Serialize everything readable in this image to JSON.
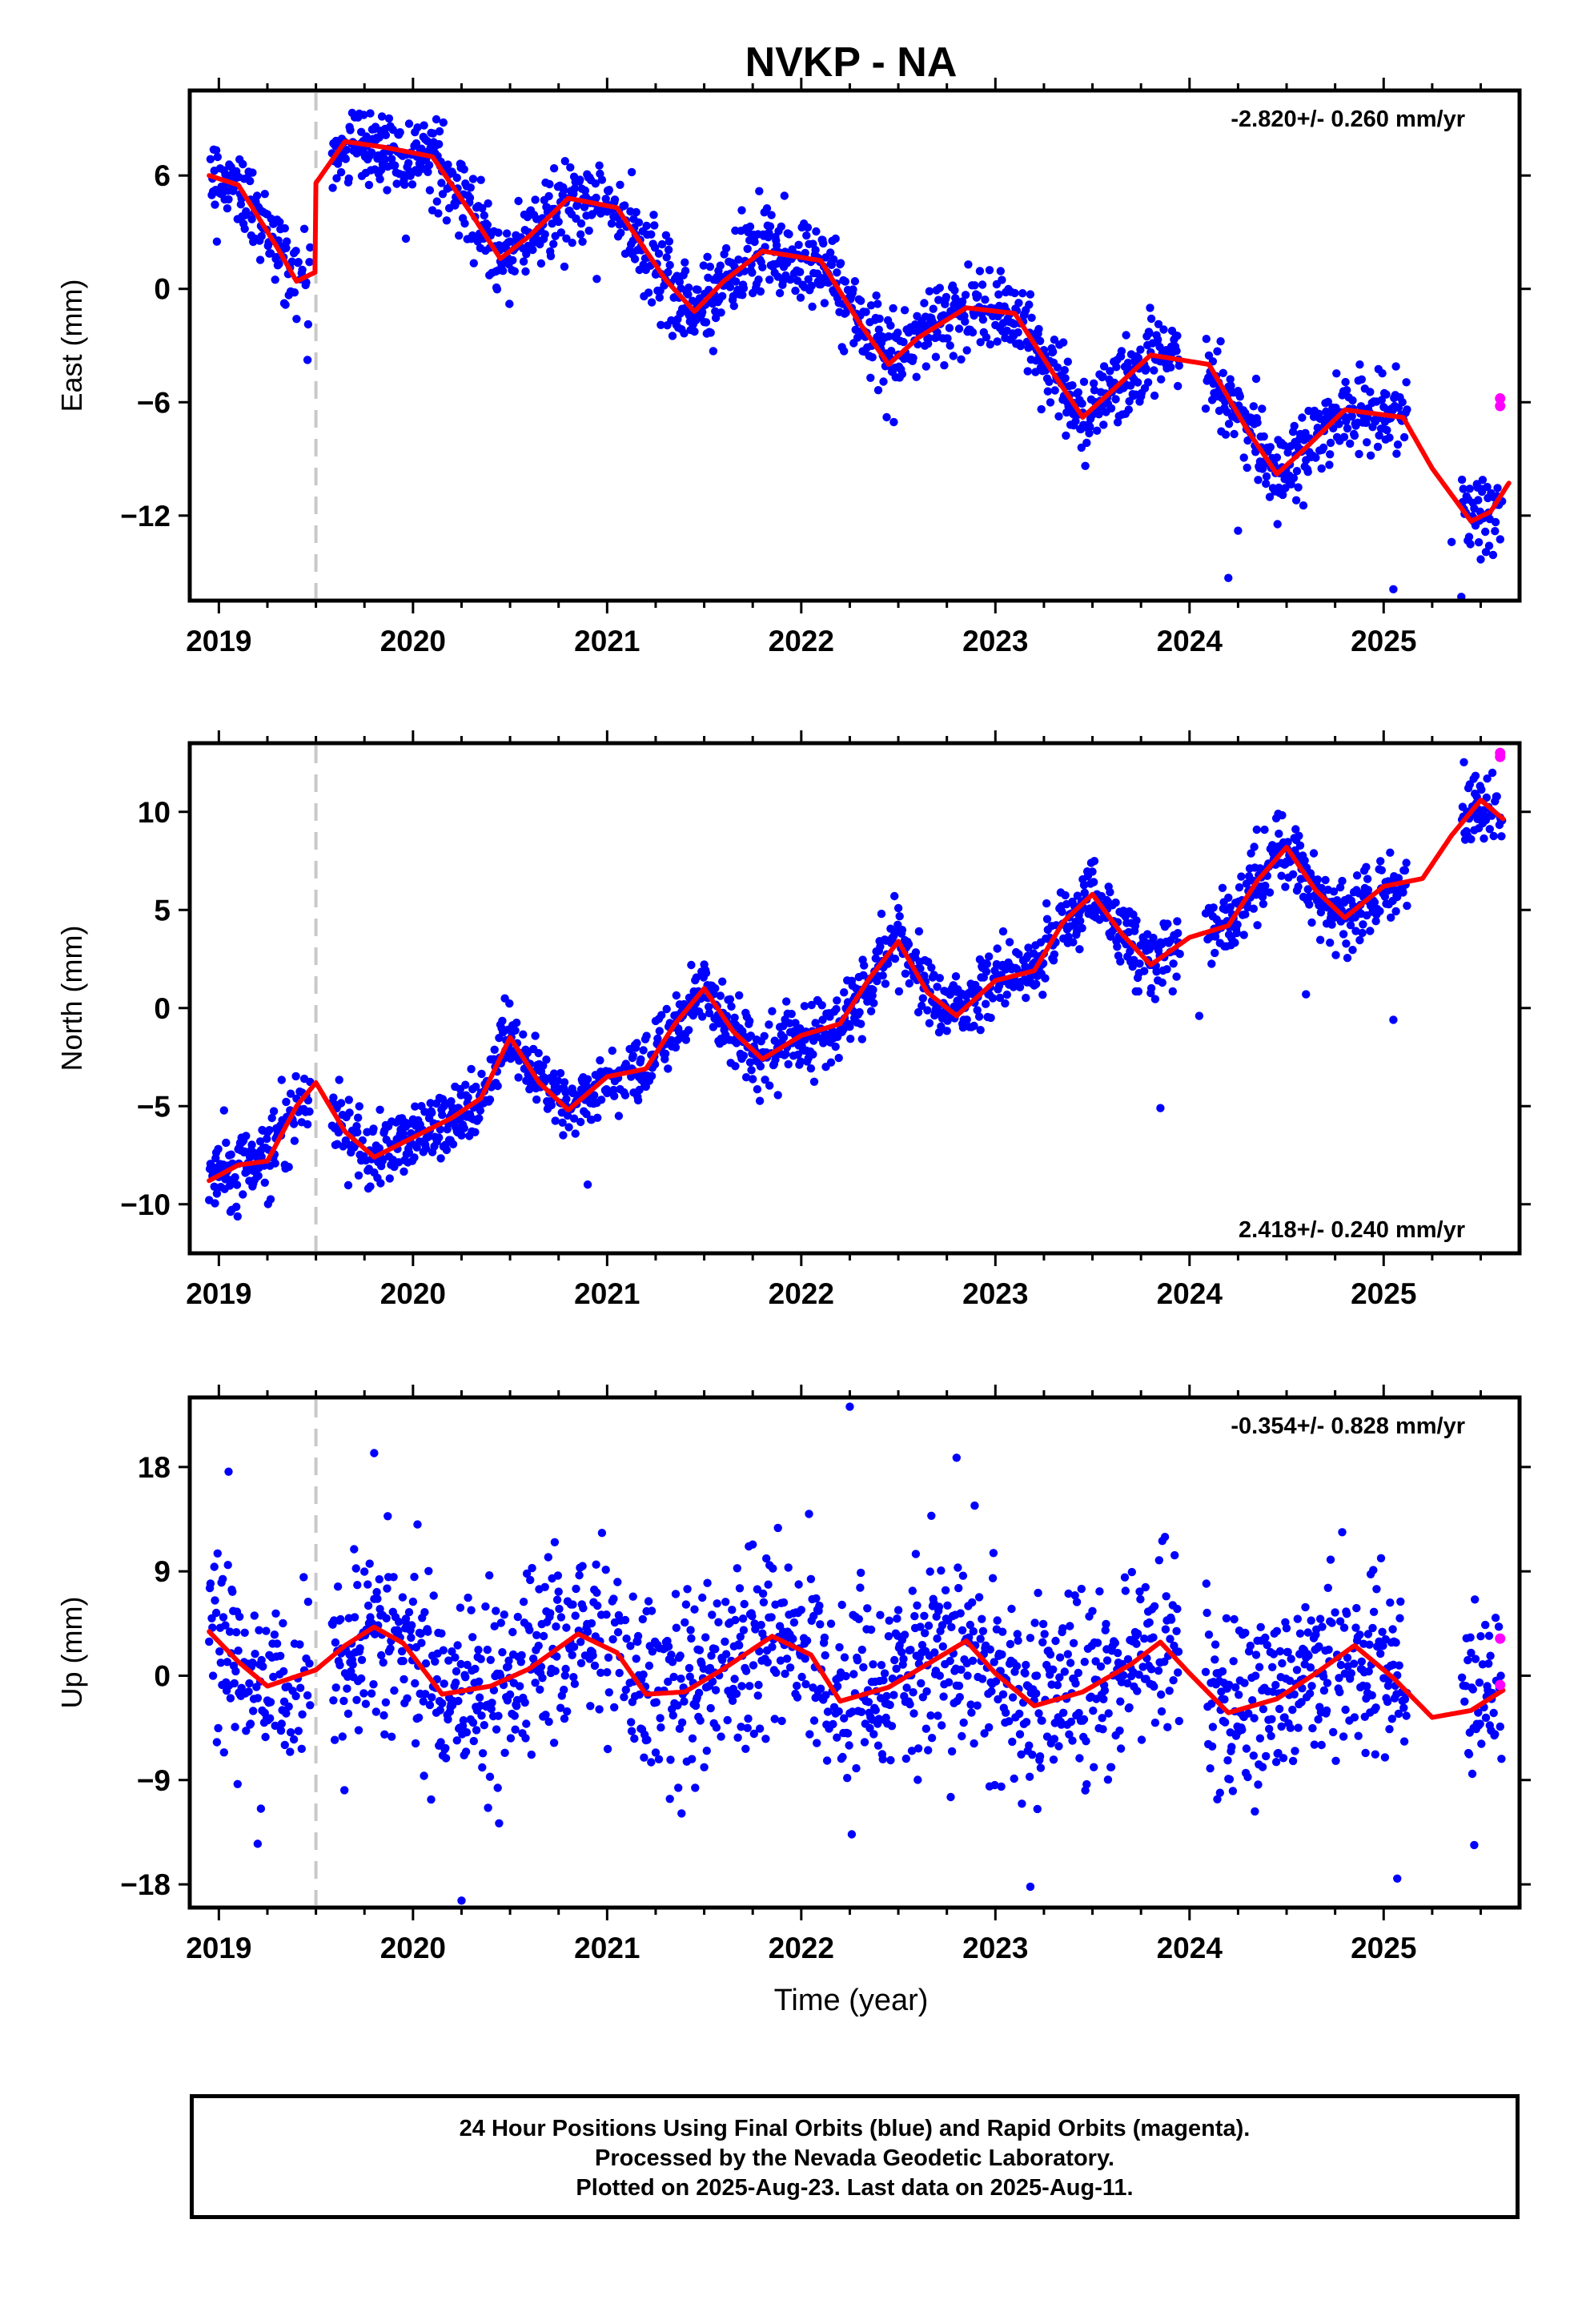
{
  "title": "NVKP - NA",
  "xlabel": "Time (year)",
  "footer": {
    "line1": "24 Hour Positions Using Final Orbits (blue) and Rapid Orbits (magenta).",
    "line2": "Processed by the Nevada Geodetic Laboratory.",
    "line3": "Plotted on 2025-Aug-23. Last data on 2025-Aug-11."
  },
  "colors": {
    "final": "#0000ff",
    "rapid": "#ff00ff",
    "model": "#ff0000",
    "equipment_change": "#c8c8c8",
    "frame": "#000000"
  },
  "chart_data": [
    {
      "type": "scatter",
      "name": "east",
      "ylabel": "East (mm)",
      "rate": "-2.820+/- 0.260 mm/yr",
      "rate_position": "top-right",
      "xlim": [
        2018.85,
        2025.7
      ],
      "ylim": [
        -16.5,
        10.5
      ],
      "xticks": [
        2019,
        2020,
        2021,
        2022,
        2023,
        2024,
        2025
      ],
      "yticks": [
        6,
        0,
        -6,
        -12
      ],
      "ytick_labels": [
        "6",
        "0",
        "−6",
        "−12"
      ],
      "equipment_change": 2019.5,
      "trend": {
        "t0": 2018.95,
        "offset": 5.9,
        "rate": -2.82,
        "amp": 1.9,
        "step": 7.0,
        "noise": 1.1
      },
      "rapid": [
        [
          2025.6,
          -5.8
        ],
        [
          2025.6,
          -6.2
        ]
      ],
      "outliers": [
        [
          2024.2,
          -15.3
        ],
        [
          2025.05,
          -15.9
        ],
        [
          2025.4,
          -16.3
        ],
        [
          2025.35,
          -13.4
        ],
        [
          2024.25,
          -12.8
        ]
      ],
      "model_knots": [
        [
          2018.95,
          6.0
        ],
        [
          2019.1,
          5.5
        ],
        [
          2019.3,
          2.2
        ],
        [
          2019.4,
          0.4
        ],
        [
          2019.5,
          0.9
        ],
        [
          2019.5,
          5.6
        ],
        [
          2019.65,
          7.8
        ],
        [
          2019.85,
          7.5
        ],
        [
          2020.1,
          7.0
        ],
        [
          2020.3,
          4.0
        ],
        [
          2020.45,
          1.6
        ],
        [
          2020.6,
          2.8
        ],
        [
          2020.8,
          4.8
        ],
        [
          2021.05,
          4.3
        ],
        [
          2021.3,
          0.5
        ],
        [
          2021.45,
          -1.2
        ],
        [
          2021.6,
          0.4
        ],
        [
          2021.8,
          2.0
        ],
        [
          2022.1,
          1.5
        ],
        [
          2022.3,
          -1.8
        ],
        [
          2022.45,
          -4.0
        ],
        [
          2022.6,
          -2.6
        ],
        [
          2022.85,
          -1.0
        ],
        [
          2023.1,
          -1.3
        ],
        [
          2023.3,
          -4.5
        ],
        [
          2023.45,
          -6.8
        ],
        [
          2023.6,
          -5.4
        ],
        [
          2023.8,
          -3.5
        ],
        [
          2024.1,
          -4.0
        ],
        [
          2024.3,
          -7.5
        ],
        [
          2024.45,
          -9.8
        ],
        [
          2024.6,
          -8.4
        ],
        [
          2024.8,
          -6.4
        ],
        [
          2025.1,
          -6.8
        ],
        [
          2025.25,
          -9.5
        ],
        [
          2025.45,
          -12.3
        ],
        [
          2025.55,
          -11.8
        ],
        [
          2025.65,
          -10.2
        ]
      ]
    },
    {
      "type": "scatter",
      "name": "north",
      "ylabel": "North (mm)",
      "rate": "2.418+/- 0.240 mm/yr",
      "rate_position": "bottom-right",
      "xlim": [
        2018.85,
        2025.7
      ],
      "ylim": [
        -12.5,
        13.5
      ],
      "xticks": [
        2019,
        2020,
        2021,
        2022,
        2023,
        2024,
        2025
      ],
      "yticks": [
        10,
        5,
        0,
        -5,
        -10
      ],
      "ytick_labels": [
        "10",
        "5",
        "0",
        "−5",
        "−10"
      ],
      "equipment_change": 2019.5,
      "trend": {
        "t0": 2018.95,
        "offset": -8.5,
        "rate": 2.418,
        "amp": 2.0,
        "step": 0,
        "noise": 0.9
      },
      "rapid": [
        [
          2025.6,
          13.0
        ],
        [
          2025.6,
          12.8
        ]
      ],
      "outliers": [
        [
          2023.85,
          -5.1
        ],
        [
          2024.6,
          0.7
        ],
        [
          2025.05,
          -0.6
        ],
        [
          2020.9,
          -9.0
        ],
        [
          2024.05,
          -0.4
        ]
      ],
      "model_knots": [
        [
          2018.95,
          -8.8
        ],
        [
          2019.1,
          -8.0
        ],
        [
          2019.25,
          -7.8
        ],
        [
          2019.4,
          -5.0
        ],
        [
          2019.5,
          -3.8
        ],
        [
          2019.65,
          -6.3
        ],
        [
          2019.8,
          -7.6
        ],
        [
          2020.0,
          -6.6
        ],
        [
          2020.2,
          -5.6
        ],
        [
          2020.35,
          -4.6
        ],
        [
          2020.5,
          -1.5
        ],
        [
          2020.65,
          -3.8
        ],
        [
          2020.8,
          -5.2
        ],
        [
          2021.0,
          -3.5
        ],
        [
          2021.2,
          -3.1
        ],
        [
          2021.35,
          -0.8
        ],
        [
          2021.5,
          1.0
        ],
        [
          2021.65,
          -1.2
        ],
        [
          2021.8,
          -2.6
        ],
        [
          2022.0,
          -1.4
        ],
        [
          2022.2,
          -0.8
        ],
        [
          2022.35,
          1.5
        ],
        [
          2022.5,
          3.4
        ],
        [
          2022.65,
          0.8
        ],
        [
          2022.8,
          -0.4
        ],
        [
          2023.0,
          1.4
        ],
        [
          2023.2,
          1.9
        ],
        [
          2023.35,
          4.4
        ],
        [
          2023.5,
          5.8
        ],
        [
          2023.65,
          3.8
        ],
        [
          2023.8,
          2.2
        ],
        [
          2024.0,
          3.6
        ],
        [
          2024.2,
          4.2
        ],
        [
          2024.35,
          6.5
        ],
        [
          2024.5,
          8.2
        ],
        [
          2024.65,
          6.0
        ],
        [
          2024.8,
          4.6
        ],
        [
          2025.0,
          6.2
        ],
        [
          2025.2,
          6.6
        ],
        [
          2025.35,
          8.8
        ],
        [
          2025.5,
          10.6
        ],
        [
          2025.62,
          9.6
        ]
      ]
    },
    {
      "type": "scatter",
      "name": "up",
      "ylabel": "Up (mm)",
      "rate": "-0.354+/- 0.828 mm/yr",
      "rate_position": "top-right",
      "xlim": [
        2018.85,
        2025.7
      ],
      "ylim": [
        -20,
        24
      ],
      "xticks": [
        2019,
        2020,
        2021,
        2022,
        2023,
        2024,
        2025
      ],
      "yticks": [
        18,
        9,
        0,
        -9,
        -18
      ],
      "ytick_labels": [
        "18",
        "9",
        "0",
        "−9",
        "−18"
      ],
      "equipment_change": 2019.5,
      "trend": {
        "t0": 2018.95,
        "offset": 0.5,
        "rate": -0.354,
        "amp": 2.8,
        "step": 0,
        "noise": 4.0
      },
      "rapid": [
        [
          2025.6,
          3.2
        ],
        [
          2025.6,
          -0.8
        ]
      ],
      "outliers": [
        [
          2022.25,
          23.2
        ],
        [
          2019.8,
          19.2
        ],
        [
          2020.25,
          -19.4
        ],
        [
          2023.18,
          -18.2
        ],
        [
          2025.07,
          -17.5
        ],
        [
          2022.8,
          18.8
        ],
        [
          2019.2,
          -14.5
        ],
        [
          2019.05,
          17.6
        ]
      ],
      "model_knots": [
        [
          2018.95,
          3.8
        ],
        [
          2019.1,
          1.2
        ],
        [
          2019.25,
          -0.9
        ],
        [
          2019.5,
          0.5
        ],
        [
          2019.65,
          2.6
        ],
        [
          2019.8,
          4.2
        ],
        [
          2019.95,
          2.8
        ],
        [
          2020.15,
          -1.6
        ],
        [
          2020.4,
          -0.9
        ],
        [
          2020.6,
          0.6
        ],
        [
          2020.85,
          3.6
        ],
        [
          2021.05,
          2.0
        ],
        [
          2021.2,
          -1.6
        ],
        [
          2021.4,
          -1.4
        ],
        [
          2021.6,
          0.6
        ],
        [
          2021.85,
          3.4
        ],
        [
          2022.05,
          1.8
        ],
        [
          2022.2,
          -2.2
        ],
        [
          2022.45,
          -1.0
        ],
        [
          2022.65,
          1.0
        ],
        [
          2022.85,
          3.0
        ],
        [
          2023.0,
          0.2
        ],
        [
          2023.2,
          -2.6
        ],
        [
          2023.45,
          -1.4
        ],
        [
          2023.7,
          1.0
        ],
        [
          2023.85,
          2.9
        ],
        [
          2024.0,
          0.2
        ],
        [
          2024.2,
          -3.2
        ],
        [
          2024.45,
          -2.0
        ],
        [
          2024.65,
          0.2
        ],
        [
          2024.85,
          2.6
        ],
        [
          2025.05,
          -0.2
        ],
        [
          2025.25,
          -3.6
        ],
        [
          2025.45,
          -3.0
        ],
        [
          2025.62,
          -1.2
        ]
      ]
    }
  ]
}
